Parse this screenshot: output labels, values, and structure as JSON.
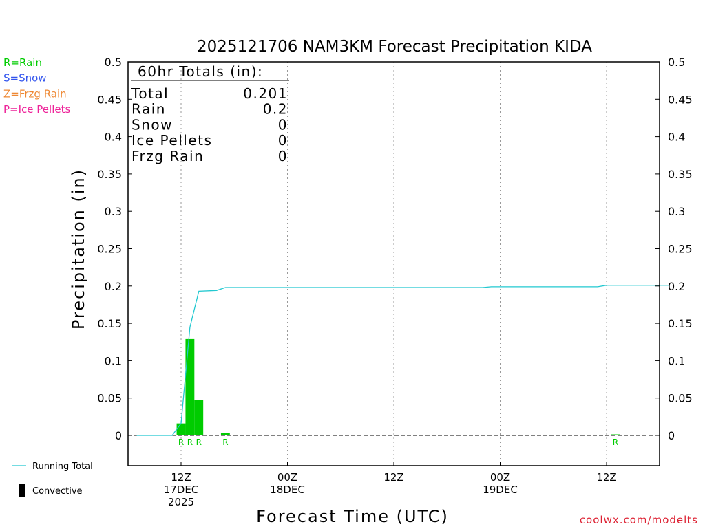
{
  "chart_data": {
    "type": "bar",
    "title": "2025121706 NAM3KM Forecast Precipitation KIDA",
    "xlabel": "Forecast Time (UTC)",
    "ylabel": "Precipitation (in)",
    "ylim": [
      -0.04,
      0.5
    ],
    "y_ticks": [
      0,
      0.05,
      0.1,
      0.15,
      0.2,
      0.25,
      0.3,
      0.35,
      0.4,
      0.45,
      0.5
    ],
    "y_tick_labels": [
      "0",
      "0.05",
      "0.1",
      "0.15",
      "0.2",
      "0.25",
      "0.3",
      "0.35",
      "0.4",
      "0.45",
      "0.5"
    ],
    "x_unit": "forecast hour",
    "xlim": [
      1,
      61
    ],
    "x_ticks": [
      {
        "hour": 6,
        "lines": [
          "12Z",
          "17DEC",
          "2025"
        ]
      },
      {
        "hour": 18,
        "lines": [
          "00Z",
          "18DEC"
        ]
      },
      {
        "hour": 30,
        "lines": [
          "12Z"
        ]
      },
      {
        "hour": 42,
        "lines": [
          "00Z",
          "19DEC"
        ]
      },
      {
        "hour": 54,
        "lines": [
          "12Z"
        ]
      }
    ],
    "grid": "vertical dotted",
    "legend": {
      "precip_types": [
        {
          "label": "R=Rain",
          "color": "#00cc00"
        },
        {
          "label": "S=Snow",
          "color": "#3355ee"
        },
        {
          "label": "Z=Frzg Rain",
          "color": "#ee8833"
        },
        {
          "label": "P=Ice Pellets",
          "color": "#ee2299"
        }
      ],
      "running_total_label": "Running Total",
      "convective_label": "Convective"
    },
    "bars": [
      {
        "hour": 6,
        "value": 0.016,
        "type": "R"
      },
      {
        "hour": 7,
        "value": 0.129,
        "type": "R"
      },
      {
        "hour": 8,
        "value": 0.047,
        "type": "R"
      },
      {
        "hour": 11,
        "value": 0.003,
        "type": "R"
      },
      {
        "hour": 55,
        "value": 0.001,
        "type": "R"
      }
    ],
    "running_total": {
      "name": "Running Total",
      "x": [
        1,
        5,
        6,
        7,
        8,
        10,
        11,
        40,
        41,
        53,
        54,
        61
      ],
      "y": [
        0,
        0,
        0.016,
        0.145,
        0.193,
        0.194,
        0.198,
        0.198,
        0.199,
        0.199,
        0.201,
        0.201
      ]
    },
    "totals_box": {
      "heading": "60hr Totals (in):",
      "rows": [
        {
          "label": "Total",
          "value": "0.201"
        },
        {
          "label": "Rain",
          "value": "0.2"
        },
        {
          "label": "Snow",
          "value": "0"
        },
        {
          "label": "Ice Pellets",
          "value": "0"
        },
        {
          "label": "Frzg Rain",
          "value": "0"
        }
      ]
    },
    "colors": {
      "rain": "#00cc00",
      "running_total": "#22c8d0",
      "axis": "#000000",
      "watermark": "#dd2233"
    }
  },
  "footer": {
    "watermark": "coolwx.com/modelts"
  }
}
